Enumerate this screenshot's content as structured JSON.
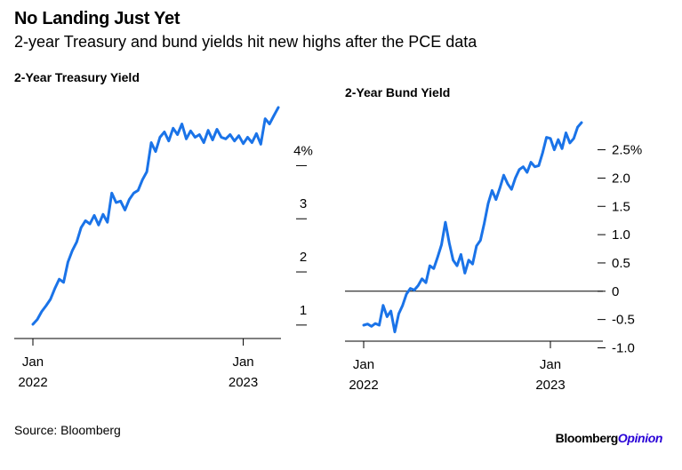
{
  "header": {
    "title": "No Landing Just Yet",
    "subtitle": "2-year Treasury and bund yields hit new highs after the PCE data"
  },
  "footer": {
    "source": "Source: Bloomberg",
    "brand_a": "Bloomberg",
    "brand_b": "Opinion"
  },
  "colors": {
    "line": "#1a73e8",
    "axis": "#000000",
    "brand_accent": "#2800d7"
  },
  "chart_data": [
    {
      "type": "line",
      "title": "2-Year Treasury Yield",
      "xlabel": "",
      "ylabel": "",
      "x_ticks": [
        {
          "label": [
            "Jan",
            "2022"
          ],
          "month": 0
        },
        {
          "label": [
            "Jan",
            "2023"
          ],
          "month": 12
        }
      ],
      "y_ticks": [
        {
          "value": 1,
          "label": "1"
        },
        {
          "value": 2,
          "label": "2"
        },
        {
          "value": 3,
          "label": "3"
        },
        {
          "value": 4,
          "label": "4%"
        }
      ],
      "ylim": [
        0.55,
        5.0
      ],
      "xlim": [
        0,
        14.2
      ],
      "series": [
        {
          "x": [
            0,
            0.25,
            0.5,
            0.75,
            1.0,
            1.25,
            1.5,
            1.75,
            2.0,
            2.25,
            2.5,
            2.75,
            3.0,
            3.25,
            3.5,
            3.75,
            4.0,
            4.25,
            4.5,
            4.75,
            5.0,
            5.25,
            5.5,
            5.75,
            6.0,
            6.25,
            6.5,
            6.75,
            7.0,
            7.25,
            7.5,
            7.75,
            8.0,
            8.25,
            8.5,
            8.75,
            9.0,
            9.25,
            9.5,
            9.75,
            10.0,
            10.25,
            10.5,
            10.75,
            11.0,
            11.25,
            11.5,
            11.75,
            12.0,
            12.25,
            12.5,
            12.75,
            13.0,
            13.25,
            13.5,
            13.75,
            14.0
          ],
          "y": [
            0.73,
            0.82,
            0.97,
            1.08,
            1.2,
            1.4,
            1.58,
            1.52,
            1.9,
            2.12,
            2.28,
            2.55,
            2.68,
            2.62,
            2.78,
            2.6,
            2.8,
            2.65,
            3.2,
            3.02,
            3.05,
            2.88,
            3.08,
            3.2,
            3.25,
            3.45,
            3.6,
            4.15,
            3.98,
            4.25,
            4.35,
            4.18,
            4.42,
            4.3,
            4.5,
            4.22,
            4.37,
            4.25,
            4.3,
            4.15,
            4.38,
            4.2,
            4.4,
            4.25,
            4.22,
            4.3,
            4.18,
            4.28,
            4.13,
            4.25,
            4.15,
            4.32,
            4.12,
            4.6,
            4.5,
            4.66,
            4.81
          ]
        }
      ]
    },
    {
      "type": "line",
      "title": "2-Year Bund Yield",
      "xlabel": "",
      "ylabel": "",
      "x_ticks": [
        {
          "label": [
            "Jan",
            "2022"
          ],
          "month": 0
        },
        {
          "label": [
            "Jan",
            "2023"
          ],
          "month": 12
        }
      ],
      "y_ticks": [
        {
          "value": -1.0,
          "label": "-1.0"
        },
        {
          "value": -0.5,
          "label": "-0.5"
        },
        {
          "value": 0,
          "label": "0"
        },
        {
          "value": 0.5,
          "label": "0.5"
        },
        {
          "value": 1.0,
          "label": "1.0"
        },
        {
          "value": 1.5,
          "label": "1.5"
        },
        {
          "value": 2.0,
          "label": "2.0"
        },
        {
          "value": 2.5,
          "label": "2.5%"
        }
      ],
      "ylim": [
        -1.0,
        3.2
      ],
      "xlim": [
        0,
        14.2
      ],
      "series": [
        {
          "x": [
            0,
            0.25,
            0.5,
            0.75,
            1.0,
            1.25,
            1.5,
            1.75,
            2.0,
            2.25,
            2.5,
            2.75,
            3.0,
            3.25,
            3.5,
            3.75,
            4.0,
            4.25,
            4.5,
            4.75,
            5.0,
            5.25,
            5.5,
            5.75,
            6.0,
            6.25,
            6.5,
            6.75,
            7.0,
            7.25,
            7.5,
            7.75,
            8.0,
            8.25,
            8.5,
            8.75,
            9.0,
            9.25,
            9.5,
            9.75,
            10.0,
            10.25,
            10.5,
            10.75,
            11.0,
            11.25,
            11.5,
            11.75,
            12.0,
            12.25,
            12.5,
            12.75,
            13.0,
            13.25,
            13.5,
            13.75,
            14.0
          ],
          "y": [
            -0.6,
            -0.58,
            -0.62,
            -0.57,
            -0.6,
            -0.25,
            -0.45,
            -0.35,
            -0.72,
            -0.4,
            -0.25,
            -0.05,
            0.05,
            0.02,
            0.1,
            0.22,
            0.15,
            0.45,
            0.4,
            0.6,
            0.82,
            1.22,
            0.85,
            0.55,
            0.45,
            0.65,
            0.32,
            0.55,
            0.48,
            0.8,
            0.9,
            1.2,
            1.55,
            1.78,
            1.62,
            1.82,
            2.05,
            1.9,
            1.8,
            2.0,
            2.15,
            2.2,
            2.1,
            2.28,
            2.2,
            2.22,
            2.45,
            2.72,
            2.7,
            2.5,
            2.68,
            2.52,
            2.8,
            2.62,
            2.7,
            2.9,
            2.98
          ]
        }
      ]
    }
  ]
}
